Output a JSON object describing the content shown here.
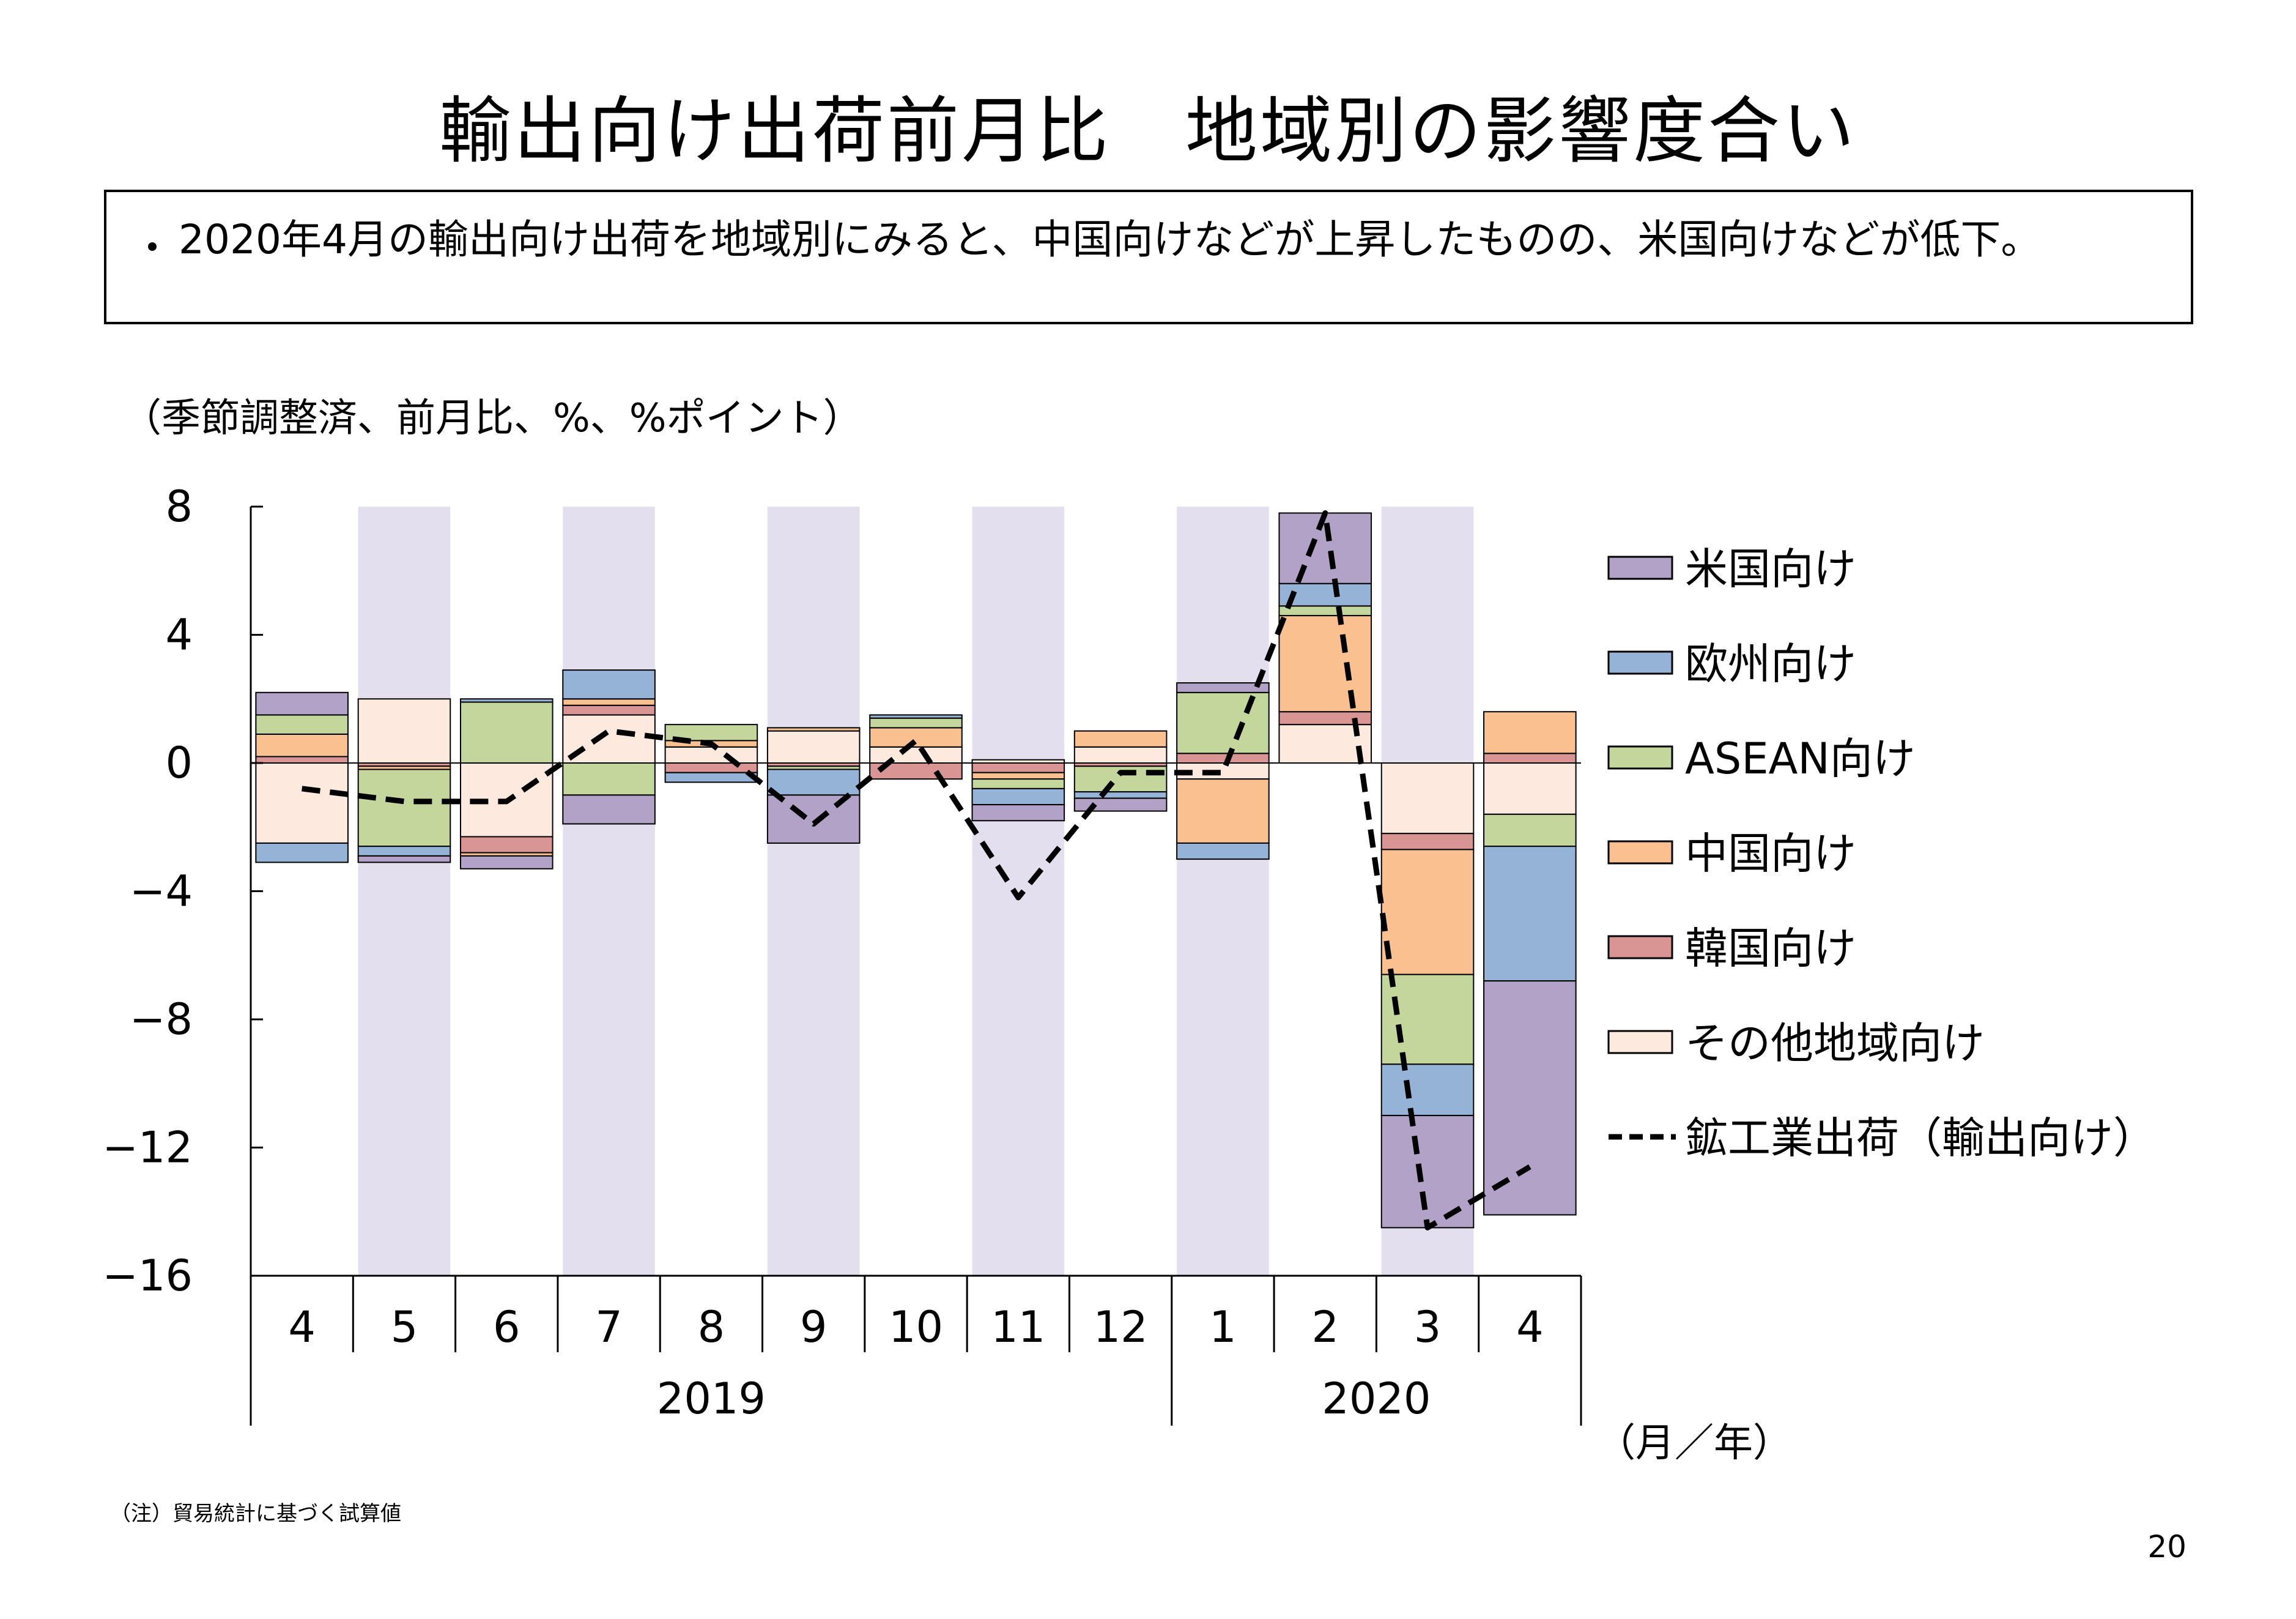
{
  "page": {
    "title": "輸出向け出荷前月比　地域別の影響度合い",
    "summary_bullet": "・",
    "summary": "2020年4月の輸出向け出荷を地域別にみると、中国向けなどが上昇したものの、米国向けなどが低下。",
    "note": "（注）貿易統計に基づく試算値",
    "page_number": "20"
  },
  "chart_data": {
    "type": "bar",
    "stacked": true,
    "unit_label": "（季節調整済、前月比、%、%ポイント）",
    "x_unit_label": "（月／年）",
    "categories": [
      "4",
      "5",
      "6",
      "7",
      "8",
      "9",
      "10",
      "11",
      "12",
      "1",
      "2",
      "3",
      "4"
    ],
    "year_groups": [
      {
        "label": "2019",
        "from": 0,
        "to": 8
      },
      {
        "label": "2020",
        "from": 9,
        "to": 12
      }
    ],
    "ylim": [
      -16,
      8
    ],
    "yticks": [
      8,
      4,
      0,
      -4,
      -8,
      -12,
      -16
    ],
    "shaded_bands": [
      1,
      3,
      5,
      7,
      9,
      11
    ],
    "shade_color": "#e4dfee",
    "series": [
      {
        "name": "その他地域向け",
        "color": "#fde9dd",
        "values": [
          -2.5,
          2.0,
          -2.3,
          1.5,
          0.5,
          1.0,
          0.5,
          0.1,
          0.5,
          -0.5,
          1.2,
          -2.2,
          -1.6
        ]
      },
      {
        "name": "韓国向け",
        "color": "#d99594",
        "values": [
          0.2,
          -0.1,
          -0.5,
          0.3,
          -0.3,
          -0.1,
          -0.5,
          -0.3,
          -0.1,
          0.3,
          0.4,
          -0.5,
          0.3
        ]
      },
      {
        "name": "中国向け",
        "color": "#fac090",
        "values": [
          0.7,
          -0.1,
          -0.1,
          0.2,
          0.2,
          0.1,
          0.6,
          -0.2,
          0.5,
          -2.0,
          3.0,
          -3.9,
          1.3
        ]
      },
      {
        "name": "ASEAN向け",
        "color": "#c3d69b",
        "values": [
          0.6,
          -2.4,
          1.9,
          -1.0,
          0.5,
          -0.1,
          0.3,
          -0.3,
          -0.8,
          1.9,
          0.3,
          -2.8,
          -1.0
        ]
      },
      {
        "name": "欧州向け",
        "color": "#95b3d7",
        "values": [
          -0.6,
          -0.3,
          0.1,
          0.9,
          -0.3,
          -0.8,
          0.1,
          -0.5,
          -0.2,
          -0.5,
          0.7,
          -1.6,
          -4.2
        ]
      },
      {
        "name": "米国向け",
        "color": "#b2a2c7",
        "values": [
          0.7,
          -0.2,
          -0.4,
          -0.9,
          0.0,
          -1.5,
          0.0,
          -0.5,
          -0.4,
          0.3,
          2.2,
          -3.5,
          -7.3
        ]
      }
    ],
    "line": {
      "name": "鉱工業出荷（輸出向け）",
      "color": "#000000",
      "values": [
        -0.8,
        -1.2,
        -1.2,
        1.0,
        0.6,
        -1.9,
        0.7,
        -4.2,
        -0.3,
        -0.3,
        7.8,
        -14.5,
        -12.6
      ]
    },
    "legend_order": [
      "米国向け",
      "欧州向け",
      "ASEAN向け",
      "中国向け",
      "韓国向け",
      "その他地域向け",
      "鉱工業出荷（輸出向け）"
    ],
    "legend_position": "right"
  }
}
